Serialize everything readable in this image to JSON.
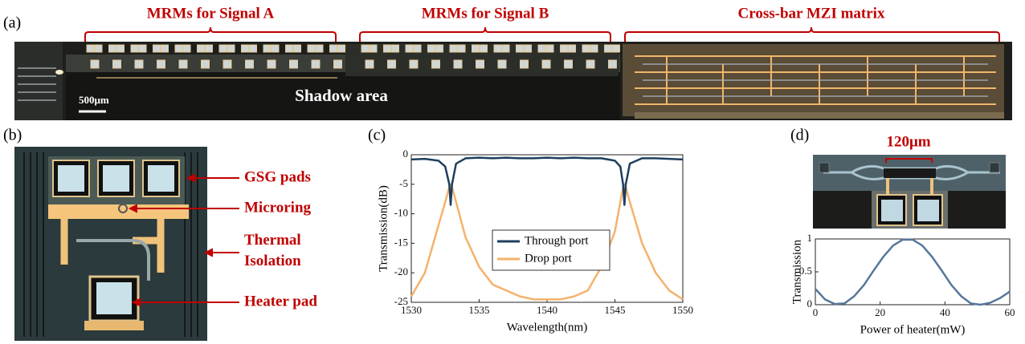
{
  "panel_labels": [
    "(a)",
    "(b)",
    "(c)",
    "(d)"
  ],
  "panel_a": {
    "brackets": [
      "MRMs for Signal A",
      "MRMs for Signal B",
      "Cross-bar MZI matrix"
    ],
    "scale_bar": "500μm",
    "shadow": "Shadow area"
  },
  "panel_b": {
    "labels": [
      "GSG pads",
      "Microring",
      "Thermal Isolation",
      "Heater pad"
    ]
  },
  "panel_d": {
    "dimension": "120μm"
  },
  "chart_data": [
    {
      "type": "line",
      "xlabel": "Wavelength(nm)",
      "ylabel": "Transmission(dB)",
      "x": [
        1530,
        1531,
        1532,
        1532.5,
        1532.8,
        1532.9,
        1533,
        1533.3,
        1534,
        1535,
        1536,
        1537,
        1538,
        1539,
        1540,
        1541,
        1542,
        1543,
        1544,
        1545,
        1545.4,
        1545.6,
        1545.7,
        1545.8,
        1546.1,
        1547,
        1548,
        1549,
        1550
      ],
      "series": [
        {
          "name": "Through port",
          "color": "#1d3f5e",
          "values": [
            -0.8,
            -0.7,
            -1,
            -2,
            -5,
            -8.5,
            -5,
            -1.5,
            -0.6,
            -0.5,
            -0.6,
            -0.5,
            -0.6,
            -0.6,
            -0.5,
            -0.6,
            -0.5,
            -0.6,
            -0.6,
            -1,
            -2,
            -5,
            -8.5,
            -5,
            -1.5,
            -0.6,
            -0.6,
            -0.7,
            -0.8
          ]
        },
        {
          "name": "Drop port",
          "color": "#f4b26b",
          "values": [
            -24,
            -20,
            -12,
            -8,
            -5.5,
            -5,
            -5.5,
            -8,
            -14,
            -19,
            -22,
            -23,
            -24,
            -24.5,
            -24.5,
            -24.5,
            -24,
            -23,
            -19,
            -13,
            -8,
            -5.5,
            -5,
            -5.5,
            -8,
            -15,
            -20,
            -23,
            -24.5
          ]
        }
      ],
      "xlim": [
        1530,
        1550
      ],
      "xticks": [
        1530,
        1535,
        1540,
        1545,
        1550
      ],
      "ylim": [
        -25,
        0
      ],
      "yticks": [
        -25,
        -20,
        -15,
        -10,
        -5,
        0
      ],
      "legend": "center"
    },
    {
      "type": "line",
      "xlabel": "Power of heater(mW)",
      "ylabel": "Transmission",
      "x": [
        0,
        3,
        6,
        9,
        12,
        15,
        18,
        21,
        24,
        27,
        30,
        33,
        36,
        39,
        42,
        45,
        48,
        51,
        54,
        57,
        60
      ],
      "series": [
        {
          "color": "#56779a",
          "values": [
            0.24,
            0.08,
            0.01,
            0.02,
            0.13,
            0.3,
            0.52,
            0.73,
            0.9,
            0.99,
            0.99,
            0.9,
            0.73,
            0.52,
            0.3,
            0.13,
            0.02,
            0,
            0.03,
            0.1,
            0.2
          ]
        }
      ],
      "xlim": [
        0,
        60
      ],
      "xticks": [
        0,
        20,
        40,
        60
      ],
      "ylim": [
        0,
        1
      ],
      "yticks": [
        0,
        0.5,
        1
      ]
    }
  ]
}
